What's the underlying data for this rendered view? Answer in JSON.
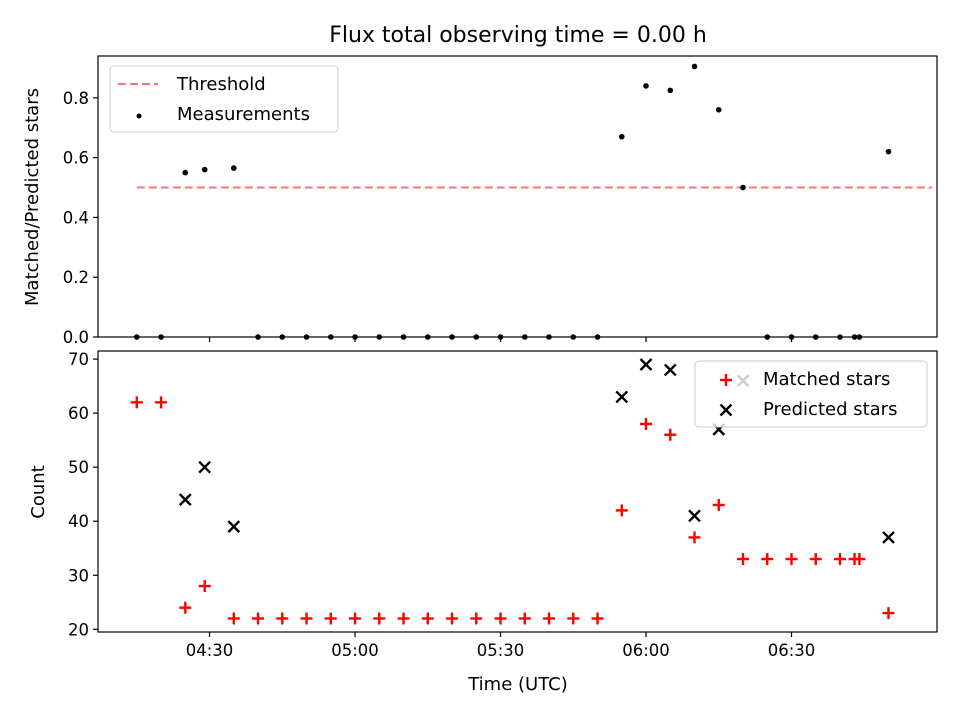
{
  "chart_data": [
    {
      "type": "scatter",
      "title": "Flux total observing time = 0.00 h",
      "xlabel": "",
      "ylabel": "Matched/Predicted stars",
      "ylim": [
        0,
        0.94
      ],
      "yticks": [
        "0.0",
        "0.2",
        "0.4",
        "0.6",
        "0.8"
      ],
      "yticks_values": [
        0,
        0.2,
        0.4,
        0.6,
        0.8
      ],
      "xlim": [
        "04:07",
        "07:00"
      ],
      "legend_position": "top-left",
      "threshold": {
        "name": "Threshold",
        "value": 0.5,
        "x_start": "04:15",
        "x_end": "06:59",
        "color": "#ff7777",
        "style": "dashed"
      },
      "series": [
        {
          "name": "Measurements",
          "color": "#000000",
          "x": [
            "04:15",
            "04:20",
            "04:25",
            "04:29",
            "04:35",
            "04:40",
            "04:45",
            "04:50",
            "04:55",
            "05:00",
            "05:05",
            "05:10",
            "05:15",
            "05:20",
            "05:25",
            "05:30",
            "05:35",
            "05:40",
            "05:45",
            "05:50",
            "05:55",
            "06:00",
            "06:05",
            "06:10",
            "06:15",
            "06:20",
            "06:25",
            "06:30",
            "06:35",
            "06:40",
            "06:43",
            "06:44",
            "06:50"
          ],
          "values": [
            0,
            0,
            0.55,
            0.56,
            0.565,
            0,
            0,
            0,
            0,
            0,
            0,
            0,
            0,
            0,
            0,
            0,
            0,
            0,
            0,
            0,
            0.67,
            0.84,
            0.825,
            0.905,
            0.76,
            0.5,
            0,
            0,
            0,
            0,
            0,
            0,
            0.62
          ]
        }
      ]
    },
    {
      "type": "scatter",
      "title": "",
      "xlabel": "Time (UTC)",
      "ylabel": "Count",
      "ylim": [
        19.5,
        71.5
      ],
      "yticks": [
        "20",
        "30",
        "40",
        "50",
        "60",
        "70"
      ],
      "yticks_values": [
        20,
        30,
        40,
        50,
        60,
        70
      ],
      "xticks": [
        "04:30",
        "05:00",
        "05:30",
        "06:00",
        "06:30"
      ],
      "xlim": [
        "04:07",
        "07:00"
      ],
      "legend_position": "top-right",
      "series": [
        {
          "name": "Matched stars",
          "color": "#ff0000",
          "marker": "plus",
          "x": [
            "04:15",
            "04:20",
            "04:25",
            "04:29",
            "04:35",
            "04:40",
            "04:45",
            "04:50",
            "04:55",
            "05:00",
            "05:05",
            "05:10",
            "05:15",
            "05:20",
            "05:25",
            "05:30",
            "05:35",
            "05:40",
            "05:45",
            "05:50",
            "05:55",
            "06:00",
            "06:05",
            "06:10",
            "06:15",
            "06:20",
            "06:25",
            "06:30",
            "06:35",
            "06:40",
            "06:43",
            "06:44",
            "06:50"
          ],
          "values": [
            62,
            62,
            24,
            28,
            22,
            22,
            22,
            22,
            22,
            22,
            22,
            22,
            22,
            22,
            22,
            22,
            22,
            22,
            22,
            22,
            42,
            58,
            56,
            37,
            43,
            33,
            33,
            33,
            33,
            33,
            33,
            33,
            23
          ]
        },
        {
          "name": "Predicted stars",
          "color": "#000000",
          "marker": "x",
          "x": [
            "04:25",
            "04:29",
            "04:35",
            "05:55",
            "06:00",
            "06:05",
            "06:10",
            "06:15",
            "06:20",
            "06:50"
          ],
          "values": [
            44,
            50,
            39,
            63,
            69,
            68,
            41,
            57,
            66,
            37
          ]
        }
      ]
    }
  ]
}
